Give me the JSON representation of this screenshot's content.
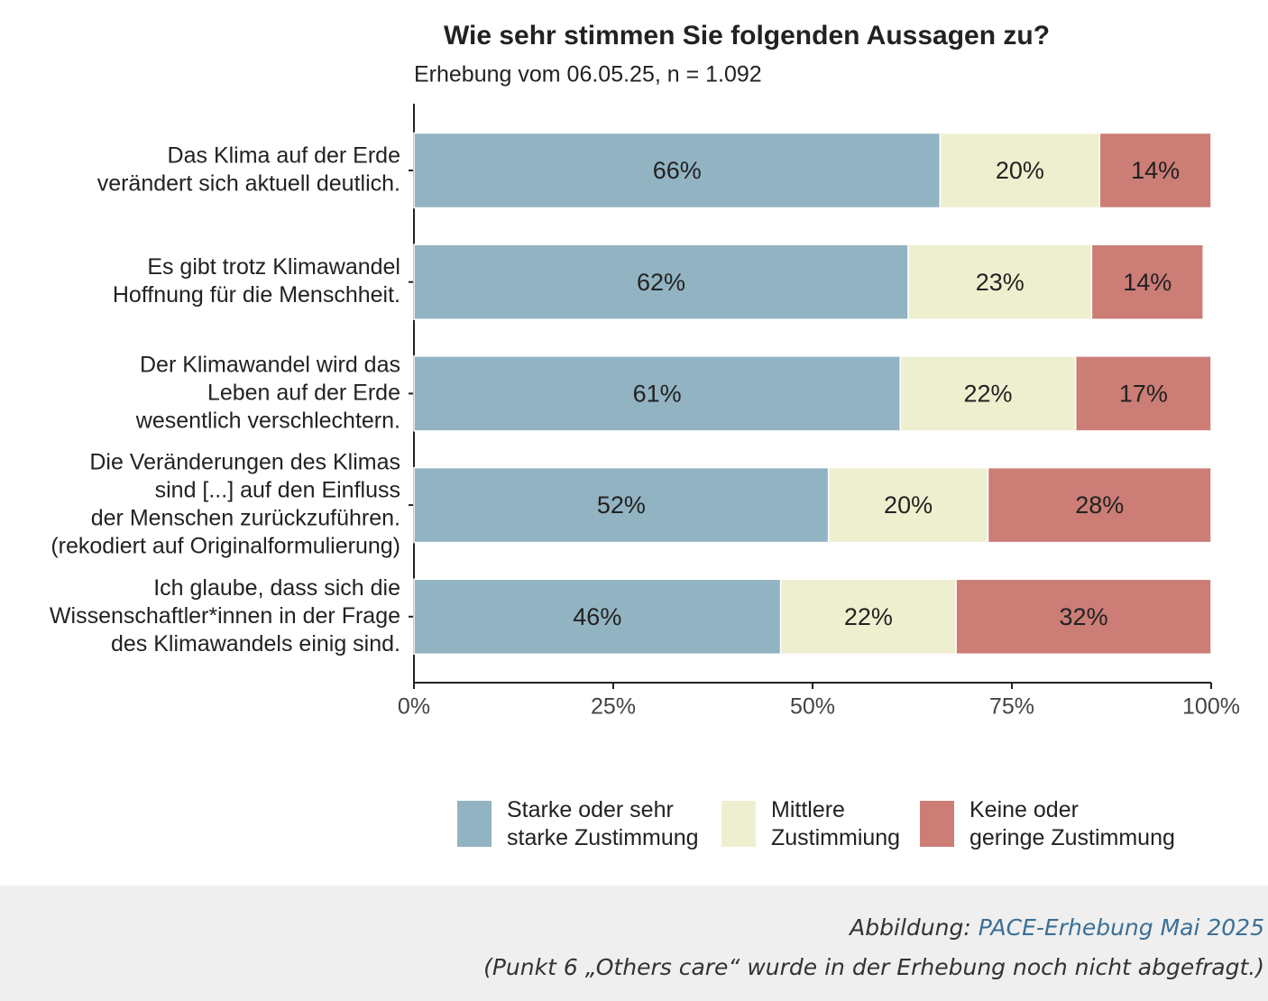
{
  "chart_data": {
    "type": "stacked-bar-horizontal",
    "title": "Wie sehr stimmen Sie folgenden Aussagen zu?",
    "subtitle": "Erhebung vom 06.05.25, n = 1.092",
    "categories": [
      "Das Klima auf der Erde\nverändert sich aktuell deutlich.",
      "Es gibt trotz Klimawandel\nHoffnung für die Menschheit.",
      "Der Klimawandel wird das\nLeben auf der Erde\nwesentlich verschlechtern.",
      "Die Veränderungen des Klimas\nsind [...] auf den Einfluss\nder Menschen zurückzuführen.\n(rekodiert auf Originalformulierung)",
      "Ich glaube, dass sich die\nWissenschaftler*innen in der Frage\ndes Klimawandels einig sind."
    ],
    "series": [
      {
        "name": "Starke oder sehr\nstarke Zustimmung",
        "color": "#92b3c2",
        "values": [
          66,
          62,
          61,
          52,
          46
        ],
        "value_labels": [
          "66%",
          "62%",
          "61%",
          "52%",
          "46%"
        ]
      },
      {
        "name": "Mittlere\nZustimmiung",
        "color": "#eeefcf",
        "values": [
          20,
          23,
          22,
          20,
          22
        ],
        "value_labels": [
          "20%",
          "23%",
          "22%",
          "20%",
          "22%"
        ]
      },
      {
        "name": "Keine oder\ngeringe Zustimmung",
        "color": "#cb7d76",
        "values": [
          14,
          14,
          17,
          28,
          32
        ],
        "value_labels": [
          "14%",
          "14%",
          "17%",
          "28%",
          "32%"
        ]
      }
    ],
    "xlim": [
      0,
      100
    ],
    "xticks": [
      {
        "value": 0,
        "label": "0%"
      },
      {
        "value": 25,
        "label": "25%"
      },
      {
        "value": 50,
        "label": "50%"
      },
      {
        "value": 75,
        "label": "75%"
      },
      {
        "value": 100,
        "label": "100%"
      }
    ]
  },
  "caption": {
    "prefix": "Abbildung:",
    "link": "PACE-Erhebung Mai 2025",
    "note": "(Punkt 6 „Others care“ wurde in der Erhebung noch nicht abgefragt.)"
  }
}
